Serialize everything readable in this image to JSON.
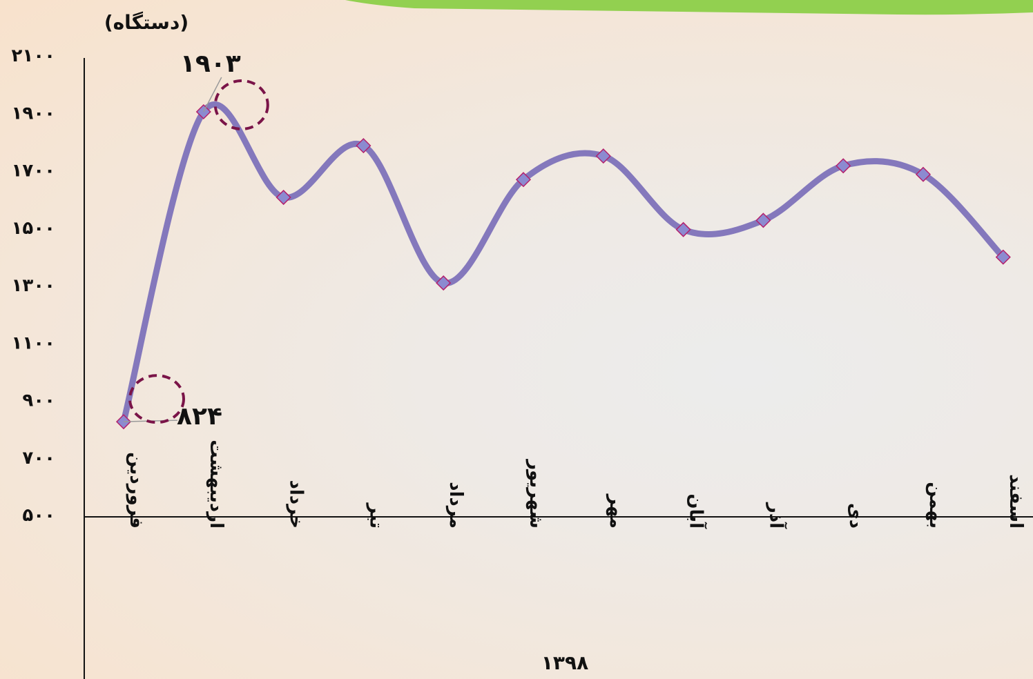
{
  "chart_data": {
    "type": "line",
    "smooth": true,
    "title": "",
    "unit_label": "(دستگاه)",
    "xlabel": "۱۳۹۸",
    "ylabel": "",
    "ylim": [
      500,
      2100
    ],
    "yticks": [
      500,
      700,
      900,
      1100,
      1300,
      1500,
      1700,
      1900,
      2100
    ],
    "ytick_labels": [
      "۵۰۰",
      "۷۰۰",
      "۹۰۰",
      "۱۱۰۰",
      "۱۳۰۰",
      "۱۵۰۰",
      "۱۷۰۰",
      "۱۹۰۰",
      "۲۱۰۰"
    ],
    "categories": [
      "فروردین",
      "اردیبهشت",
      "خرداد",
      "تیر",
      "مرداد",
      "شهریور",
      "مهر",
      "آبان",
      "آذر",
      "دی",
      "بهمن",
      "اسفند"
    ],
    "series": [
      {
        "values": [
          824,
          1903,
          1605,
          1785,
          1307,
          1667,
          1749,
          1493,
          1525,
          1715,
          1685,
          1397
        ]
      }
    ],
    "annotations": [
      {
        "category_index": 0,
        "label": "۸۲۴"
      },
      {
        "category_index": 1,
        "label": "۱۹۰۳"
      }
    ],
    "grid": false,
    "colors": {
      "line": "#8478bc",
      "marker_fill": "#8c8ad0",
      "marker_stroke": "#b4206c",
      "highlight_circle": "#7a1448",
      "axis": "#111111",
      "banner": "#92d050"
    }
  }
}
